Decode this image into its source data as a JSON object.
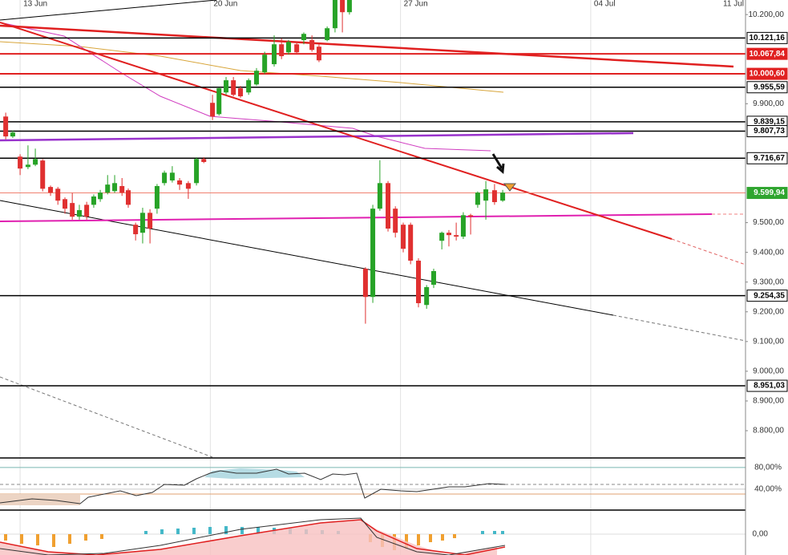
{
  "chart_data": {
    "type": "candlestick",
    "up_color": "#27a327",
    "down_color": "#e03030",
    "xlim": [
      12.26,
      41.26
    ],
    "xticks": [
      {
        "value": 13,
        "label": "13 Jun"
      },
      {
        "value": 20,
        "label": "20 Jun"
      },
      {
        "value": 27,
        "label": "27 Jun"
      },
      {
        "value": 34,
        "label": "04 Jul"
      },
      {
        "value": 41,
        "label": "11 Jul"
      }
    ],
    "ylim": [
      8711,
      10249
    ],
    "yticks": [
      {
        "value": 10200,
        "label": "10.200,00"
      },
      {
        "value": 9900,
        "label": "9.900,00"
      },
      {
        "value": 9500,
        "label": "9.500,00"
      },
      {
        "value": 9400,
        "label": "9.400,00"
      },
      {
        "value": 9300,
        "label": "9.300,00"
      },
      {
        "value": 9200,
        "label": "9.200,00"
      },
      {
        "value": 9100,
        "label": "9.100,00"
      },
      {
        "value": 9000,
        "label": "9.000,00"
      },
      {
        "value": 8900,
        "label": "8.900,00"
      },
      {
        "value": 8800,
        "label": "8.800,00"
      }
    ],
    "x": [
      12.47,
      12.73,
      13,
      13.29,
      13.56,
      13.83,
      14.12,
      14.39,
      14.65,
      14.92,
      15.18,
      15.45,
      15.71,
      15.95,
      16.22,
      16.48,
      16.75,
      16.98,
      17.25,
      17.51,
      17.78,
      18.04,
      18.31,
      18.6,
      18.87,
      19.19,
      19.49,
      19.76,
      20.08,
      20.32,
      20.58,
      20.85,
      21.11,
      21.41,
      21.7,
      22,
      22.35,
      22.62,
      22.88,
      23.18,
      23.44,
      23.74,
      24,
      24.3,
      24.59,
      24.86,
      25.12,
      25.71,
      25.98,
      26.24,
      26.54,
      26.81,
      27.1,
      27.37,
      27.66,
      27.96,
      28.22,
      28.52,
      28.78,
      29.05,
      29.31,
      29.58,
      29.84,
      30.14,
      30.46,
      30.76
    ],
    "open": [
      9857,
      9790,
      9722,
      9687,
      9695,
      9709,
      9620,
      9614,
      9579,
      9566,
      9520,
      9560,
      9560,
      9579,
      9601,
      9606,
      9623,
      9609,
      9493,
      9466,
      9533,
      9547,
      9633,
      9642,
      9642,
      9633,
      9633,
      9714,
      9903,
      9865,
      9938,
      9979,
      9952,
      9938,
      9965,
      10006,
      10033,
      10100,
      10073,
      10100,
      10114,
      10114,
      10092,
      10114,
      10154,
      10249,
      10208,
      9345,
      9250,
      9547,
      9633,
      9547,
      9493,
      9493,
      9372,
      9223,
      9291,
      9439,
      9466,
      9458,
      9453,
      9525,
      9560,
      9574,
      9609,
      9574
    ],
    "high": [
      9870,
      9810,
      9730,
      9760,
      9749,
      9714,
      9625,
      9620,
      9585,
      9600,
      9560,
      9570,
      9595,
      9610,
      9660,
      9660,
      9650,
      9615,
      9500,
      9550,
      9545,
      9630,
      9675,
      9690,
      9650,
      9640,
      9720,
      9720,
      9930,
      9955,
      9990,
      9990,
      9960,
      9985,
      10020,
      10075,
      10130,
      10120,
      10115,
      10110,
      10140,
      10130,
      10100,
      10160,
      10260,
      10260,
      10260,
      9350,
      9560,
      9710,
      9640,
      9555,
      9500,
      9500,
      9380,
      9290,
      9345,
      9470,
      9475,
      9500,
      9535,
      9530,
      9605,
      9640,
      9630,
      9610
    ],
    "low": [
      9780,
      9785,
      9660,
      9680,
      9690,
      9605,
      9590,
      9560,
      9530,
      9510,
      9510,
      9510,
      9550,
      9570,
      9595,
      9600,
      9590,
      9550,
      9440,
      9430,
      9430,
      9530,
      9625,
      9635,
      9610,
      9580,
      9625,
      9700,
      9845,
      9860,
      9930,
      9925,
      9920,
      9930,
      9960,
      10000,
      10025,
      10050,
      10065,
      10065,
      10100,
      10075,
      10040,
      10110,
      10140,
      10140,
      10200,
      9160,
      9230,
      9540,
      9470,
      9450,
      9400,
      9360,
      9215,
      9210,
      9280,
      9410,
      9420,
      9440,
      9445,
      9460,
      9550,
      9510,
      9560,
      9570
    ],
    "close": [
      9790,
      9803,
      9682,
      9695,
      9714,
      9614,
      9601,
      9574,
      9547,
      9520,
      9542,
      9520,
      9588,
      9601,
      9628,
      9633,
      9601,
      9560,
      9461,
      9533,
      9480,
      9623,
      9668,
      9668,
      9628,
      9614,
      9714,
      9704,
      9857,
      9952,
      9979,
      9930,
      9925,
      9979,
      10011,
      10065,
      10100,
      10060,
      10108,
      10073,
      10135,
      10081,
      10046,
      10154,
      10249,
      10208,
      10249,
      9250,
      9547,
      9633,
      9480,
      9466,
      9412,
      9372,
      9229,
      9283,
      9337,
      9466,
      9458,
      9453,
      9525,
      9520,
      9601,
      9612,
      9569,
      9601
    ],
    "levels": [
      {
        "value": 10121.16,
        "label": "10.121,16",
        "color": "#000000",
        "line_color": "#000000"
      },
      {
        "value": 10067.84,
        "label": "10.067,84",
        "color": "#e02020",
        "line_color": "#e02020"
      },
      {
        "value": 10000.6,
        "label": "10.000,60",
        "color": "#e02020",
        "line_color": "#e02020"
      },
      {
        "value": 9955.59,
        "label": "9.955,59",
        "color": "#000000",
        "line_color": "#000000"
      },
      {
        "value": 9839.15,
        "label": "9.839,15",
        "color": "#000000",
        "line_color": "#000000"
      },
      {
        "value": 9807.73,
        "label": "9.807,73",
        "color": "#000000",
        "line_color": "#000000"
      },
      {
        "value": 9716.67,
        "label": "9.716,67",
        "color": "#000000",
        "line_color": "#000000"
      },
      {
        "value": 9599.94,
        "label": "9.599,94",
        "color": "#2fa52f",
        "line_color": "#f08070"
      },
      {
        "value": 9254.35,
        "label": "9.254,35",
        "color": "#000000",
        "line_color": "#000000"
      },
      {
        "value": 8951.03,
        "label": "8.951,03",
        "color": "#000000",
        "line_color": "#000000"
      }
    ],
    "stoch_ylim": [
      3,
      96
    ],
    "stoch_yticks": [
      {
        "value": 80,
        "label": "80,00%"
      },
      {
        "value": 40,
        "label": "40,00%"
      }
    ],
    "macd_ylim": [
      -26,
      29
    ],
    "macd_yticks": [
      {
        "value": 0,
        "label": "0,00"
      }
    ]
  }
}
